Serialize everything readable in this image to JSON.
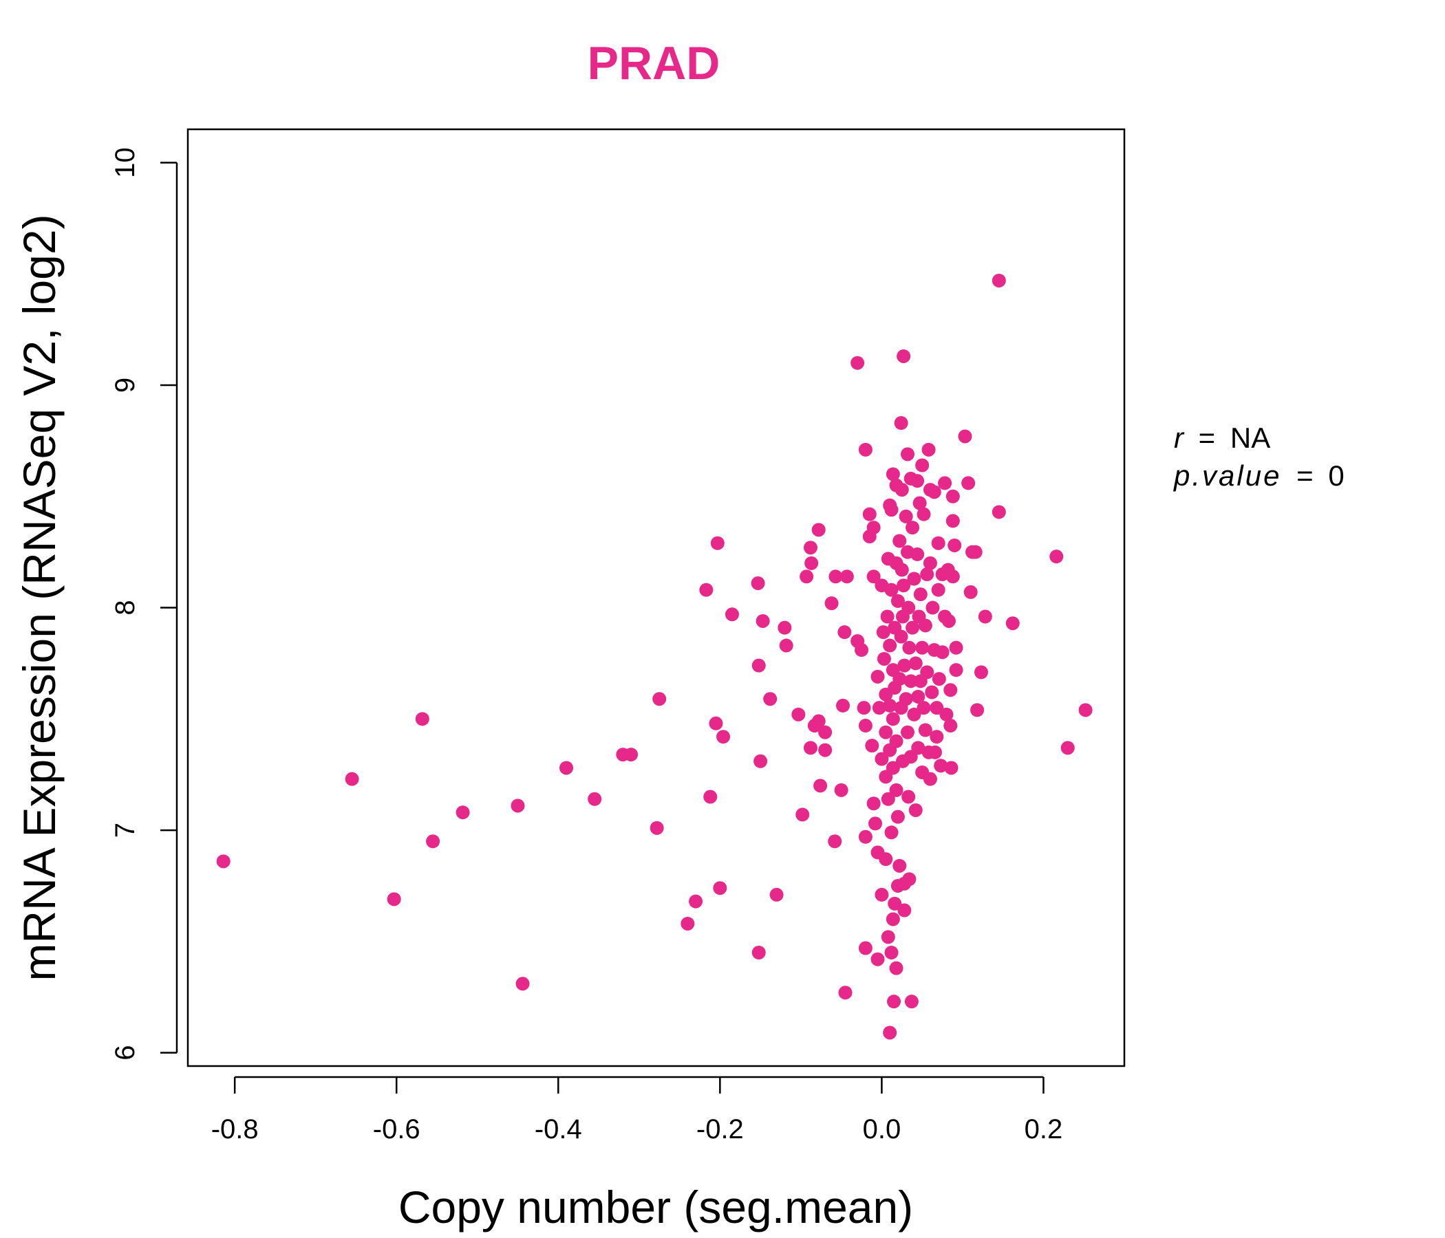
{
  "chart_data": {
    "type": "scatter",
    "title": "PRAD",
    "xlabel": "Copy number (seg.mean)",
    "ylabel": "mRNA Expression (RNASeq V2, log2)",
    "xlim": [
      -0.858,
      0.3
    ],
    "ylim": [
      5.94,
      10.15
    ],
    "x_ticks": [
      -0.8,
      -0.6,
      -0.4,
      -0.2,
      0.0,
      0.2
    ],
    "x_tick_labels": [
      "-0.8",
      "-0.6",
      "-0.4",
      "-0.2",
      "0.0",
      "0.2"
    ],
    "y_ticks": [
      6,
      7,
      8,
      9,
      10
    ],
    "y_tick_labels": [
      "6",
      "7",
      "8",
      "9",
      "10"
    ],
    "grid": false,
    "colors": {
      "point": "#e6288a",
      "title": "#e6288a",
      "axis": "#000000"
    },
    "stats": {
      "r_label": "r",
      "r_value": "NA",
      "p_label": "p.value",
      "p_value": "0"
    },
    "points": [
      [
        -0.814,
        6.86
      ],
      [
        -0.655,
        7.23
      ],
      [
        -0.603,
        6.69
      ],
      [
        -0.568,
        7.5
      ],
      [
        -0.555,
        6.95
      ],
      [
        -0.518,
        7.08
      ],
      [
        -0.45,
        7.11
      ],
      [
        -0.444,
        6.31
      ],
      [
        -0.39,
        7.28
      ],
      [
        -0.355,
        7.14
      ],
      [
        -0.32,
        7.34
      ],
      [
        -0.31,
        7.34
      ],
      [
        -0.275,
        7.59
      ],
      [
        -0.278,
        7.01
      ],
      [
        -0.24,
        6.58
      ],
      [
        -0.23,
        6.68
      ],
      [
        -0.217,
        8.08
      ],
      [
        -0.212,
        7.15
      ],
      [
        -0.203,
        8.29
      ],
      [
        -0.205,
        7.48
      ],
      [
        -0.2,
        6.74
      ],
      [
        -0.196,
        7.42
      ],
      [
        -0.185,
        7.97
      ],
      [
        -0.153,
        8.11
      ],
      [
        -0.152,
        7.74
      ],
      [
        -0.15,
        7.31
      ],
      [
        -0.152,
        6.45
      ],
      [
        -0.147,
        7.94
      ],
      [
        -0.138,
        7.59
      ],
      [
        -0.13,
        6.71
      ],
      [
        -0.12,
        7.91
      ],
      [
        -0.118,
        7.83
      ],
      [
        -0.103,
        7.52
      ],
      [
        -0.098,
        7.07
      ],
      [
        -0.093,
        8.14
      ],
      [
        -0.088,
        8.27
      ],
      [
        -0.087,
        8.2
      ],
      [
        -0.088,
        7.37
      ],
      [
        -0.083,
        7.47
      ],
      [
        -0.078,
        8.35
      ],
      [
        -0.078,
        7.49
      ],
      [
        -0.076,
        7.2
      ],
      [
        -0.07,
        7.36
      ],
      [
        -0.07,
        7.44
      ],
      [
        -0.062,
        8.02
      ],
      [
        -0.057,
        8.14
      ],
      [
        -0.058,
        6.95
      ],
      [
        -0.05,
        7.18
      ],
      [
        -0.048,
        7.56
      ],
      [
        -0.046,
        7.89
      ],
      [
        -0.043,
        8.14
      ],
      [
        -0.045,
        6.27
      ],
      [
        -0.03,
        9.1
      ],
      [
        -0.03,
        7.85
      ],
      [
        -0.025,
        7.81
      ],
      [
        -0.022,
        7.55
      ],
      [
        -0.02,
        8.71
      ],
      [
        -0.02,
        7.47
      ],
      [
        -0.02,
        6.97
      ],
      [
        -0.02,
        6.47
      ],
      [
        -0.015,
        8.42
      ],
      [
        -0.015,
        8.32
      ],
      [
        -0.012,
        7.38
      ],
      [
        -0.01,
        8.36
      ],
      [
        -0.01,
        8.14
      ],
      [
        -0.01,
        7.12
      ],
      [
        -0.008,
        7.03
      ],
      [
        -0.005,
        7.69
      ],
      [
        -0.005,
        6.9
      ],
      [
        -0.005,
        6.42
      ],
      [
        -0.003,
        7.55
      ],
      [
        0.0,
        8.1
      ],
      [
        0.0,
        6.71
      ],
      [
        0.0,
        7.32
      ],
      [
        0.002,
        7.89
      ],
      [
        0.003,
        7.77
      ],
      [
        0.005,
        7.61
      ],
      [
        0.005,
        7.44
      ],
      [
        0.005,
        7.24
      ],
      [
        0.005,
        6.87
      ],
      [
        0.007,
        7.96
      ],
      [
        0.008,
        8.22
      ],
      [
        0.008,
        7.14
      ],
      [
        0.008,
        6.52
      ],
      [
        0.01,
        8.46
      ],
      [
        0.01,
        7.83
      ],
      [
        0.01,
        7.56
      ],
      [
        0.01,
        7.36
      ],
      [
        0.01,
        6.09
      ],
      [
        0.012,
        8.44
      ],
      [
        0.012,
        8.08
      ],
      [
        0.012,
        6.99
      ],
      [
        0.012,
        6.45
      ],
      [
        0.014,
        8.6
      ],
      [
        0.014,
        7.72
      ],
      [
        0.014,
        7.5
      ],
      [
        0.014,
        7.28
      ],
      [
        0.014,
        6.6
      ],
      [
        0.015,
        6.23
      ],
      [
        0.016,
        7.91
      ],
      [
        0.016,
        7.64
      ],
      [
        0.016,
        6.67
      ],
      [
        0.018,
        8.55
      ],
      [
        0.018,
        8.2
      ],
      [
        0.018,
        7.4
      ],
      [
        0.018,
        7.18
      ],
      [
        0.018,
        6.38
      ],
      [
        0.02,
        8.03
      ],
      [
        0.02,
        7.06
      ],
      [
        0.02,
        6.75
      ],
      [
        0.022,
        8.3
      ],
      [
        0.022,
        7.68
      ],
      [
        0.022,
        6.84
      ],
      [
        0.024,
        8.83
      ],
      [
        0.024,
        7.87
      ],
      [
        0.024,
        7.55
      ],
      [
        0.025,
        8.17
      ],
      [
        0.025,
        8.53
      ],
      [
        0.026,
        7.31
      ],
      [
        0.026,
        7.96
      ],
      [
        0.027,
        9.13
      ],
      [
        0.027,
        8.1
      ],
      [
        0.028,
        7.74
      ],
      [
        0.028,
        6.76
      ],
      [
        0.028,
        6.64
      ],
      [
        0.03,
        8.41
      ],
      [
        0.03,
        7.59
      ],
      [
        0.032,
        8.69
      ],
      [
        0.032,
        8.25
      ],
      [
        0.032,
        7.44
      ],
      [
        0.033,
        8.0
      ],
      [
        0.033,
        7.15
      ],
      [
        0.034,
        7.82
      ],
      [
        0.034,
        6.78
      ],
      [
        0.036,
        8.58
      ],
      [
        0.036,
        7.67
      ],
      [
        0.036,
        7.33
      ],
      [
        0.037,
        6.23
      ],
      [
        0.038,
        8.36
      ],
      [
        0.038,
        7.91
      ],
      [
        0.04,
        8.13
      ],
      [
        0.04,
        7.52
      ],
      [
        0.042,
        7.75
      ],
      [
        0.042,
        7.09
      ],
      [
        0.044,
        8.57
      ],
      [
        0.044,
        8.24
      ],
      [
        0.045,
        7.6
      ],
      [
        0.045,
        7.37
      ],
      [
        0.046,
        7.96
      ],
      [
        0.047,
        8.47
      ],
      [
        0.048,
        8.06
      ],
      [
        0.048,
        7.67
      ],
      [
        0.05,
        8.64
      ],
      [
        0.05,
        7.82
      ],
      [
        0.05,
        7.26
      ],
      [
        0.052,
        8.42
      ],
      [
        0.052,
        7.55
      ],
      [
        0.054,
        7.92
      ],
      [
        0.054,
        7.45
      ],
      [
        0.056,
        8.15
      ],
      [
        0.056,
        7.71
      ],
      [
        0.058,
        8.71
      ],
      [
        0.058,
        7.35
      ],
      [
        0.06,
        8.53
      ],
      [
        0.06,
        8.2
      ],
      [
        0.06,
        7.23
      ],
      [
        0.062,
        7.62
      ],
      [
        0.063,
        8.0
      ],
      [
        0.065,
        8.52
      ],
      [
        0.065,
        7.81
      ],
      [
        0.066,
        7.35
      ],
      [
        0.068,
        7.55
      ],
      [
        0.068,
        7.42
      ],
      [
        0.07,
        8.29
      ],
      [
        0.07,
        8.08
      ],
      [
        0.071,
        7.68
      ],
      [
        0.073,
        7.29
      ],
      [
        0.075,
        8.15
      ],
      [
        0.075,
        7.8
      ],
      [
        0.078,
        8.56
      ],
      [
        0.078,
        7.96
      ],
      [
        0.08,
        7.52
      ],
      [
        0.082,
        8.17
      ],
      [
        0.083,
        7.94
      ],
      [
        0.085,
        7.63
      ],
      [
        0.085,
        7.47
      ],
      [
        0.086,
        7.28
      ],
      [
        0.088,
        8.5
      ],
      [
        0.088,
        8.39
      ],
      [
        0.088,
        8.14
      ],
      [
        0.09,
        8.28
      ],
      [
        0.092,
        7.82
      ],
      [
        0.092,
        7.72
      ],
      [
        0.103,
        8.77
      ],
      [
        0.107,
        8.56
      ],
      [
        0.11,
        8.07
      ],
      [
        0.112,
        8.25
      ],
      [
        0.116,
        8.25
      ],
      [
        0.118,
        7.54
      ],
      [
        0.123,
        7.71
      ],
      [
        0.128,
        7.96
      ],
      [
        0.145,
        9.47
      ],
      [
        0.145,
        8.43
      ],
      [
        0.162,
        7.93
      ],
      [
        0.216,
        8.23
      ],
      [
        0.23,
        7.37
      ],
      [
        0.252,
        7.54
      ]
    ]
  }
}
